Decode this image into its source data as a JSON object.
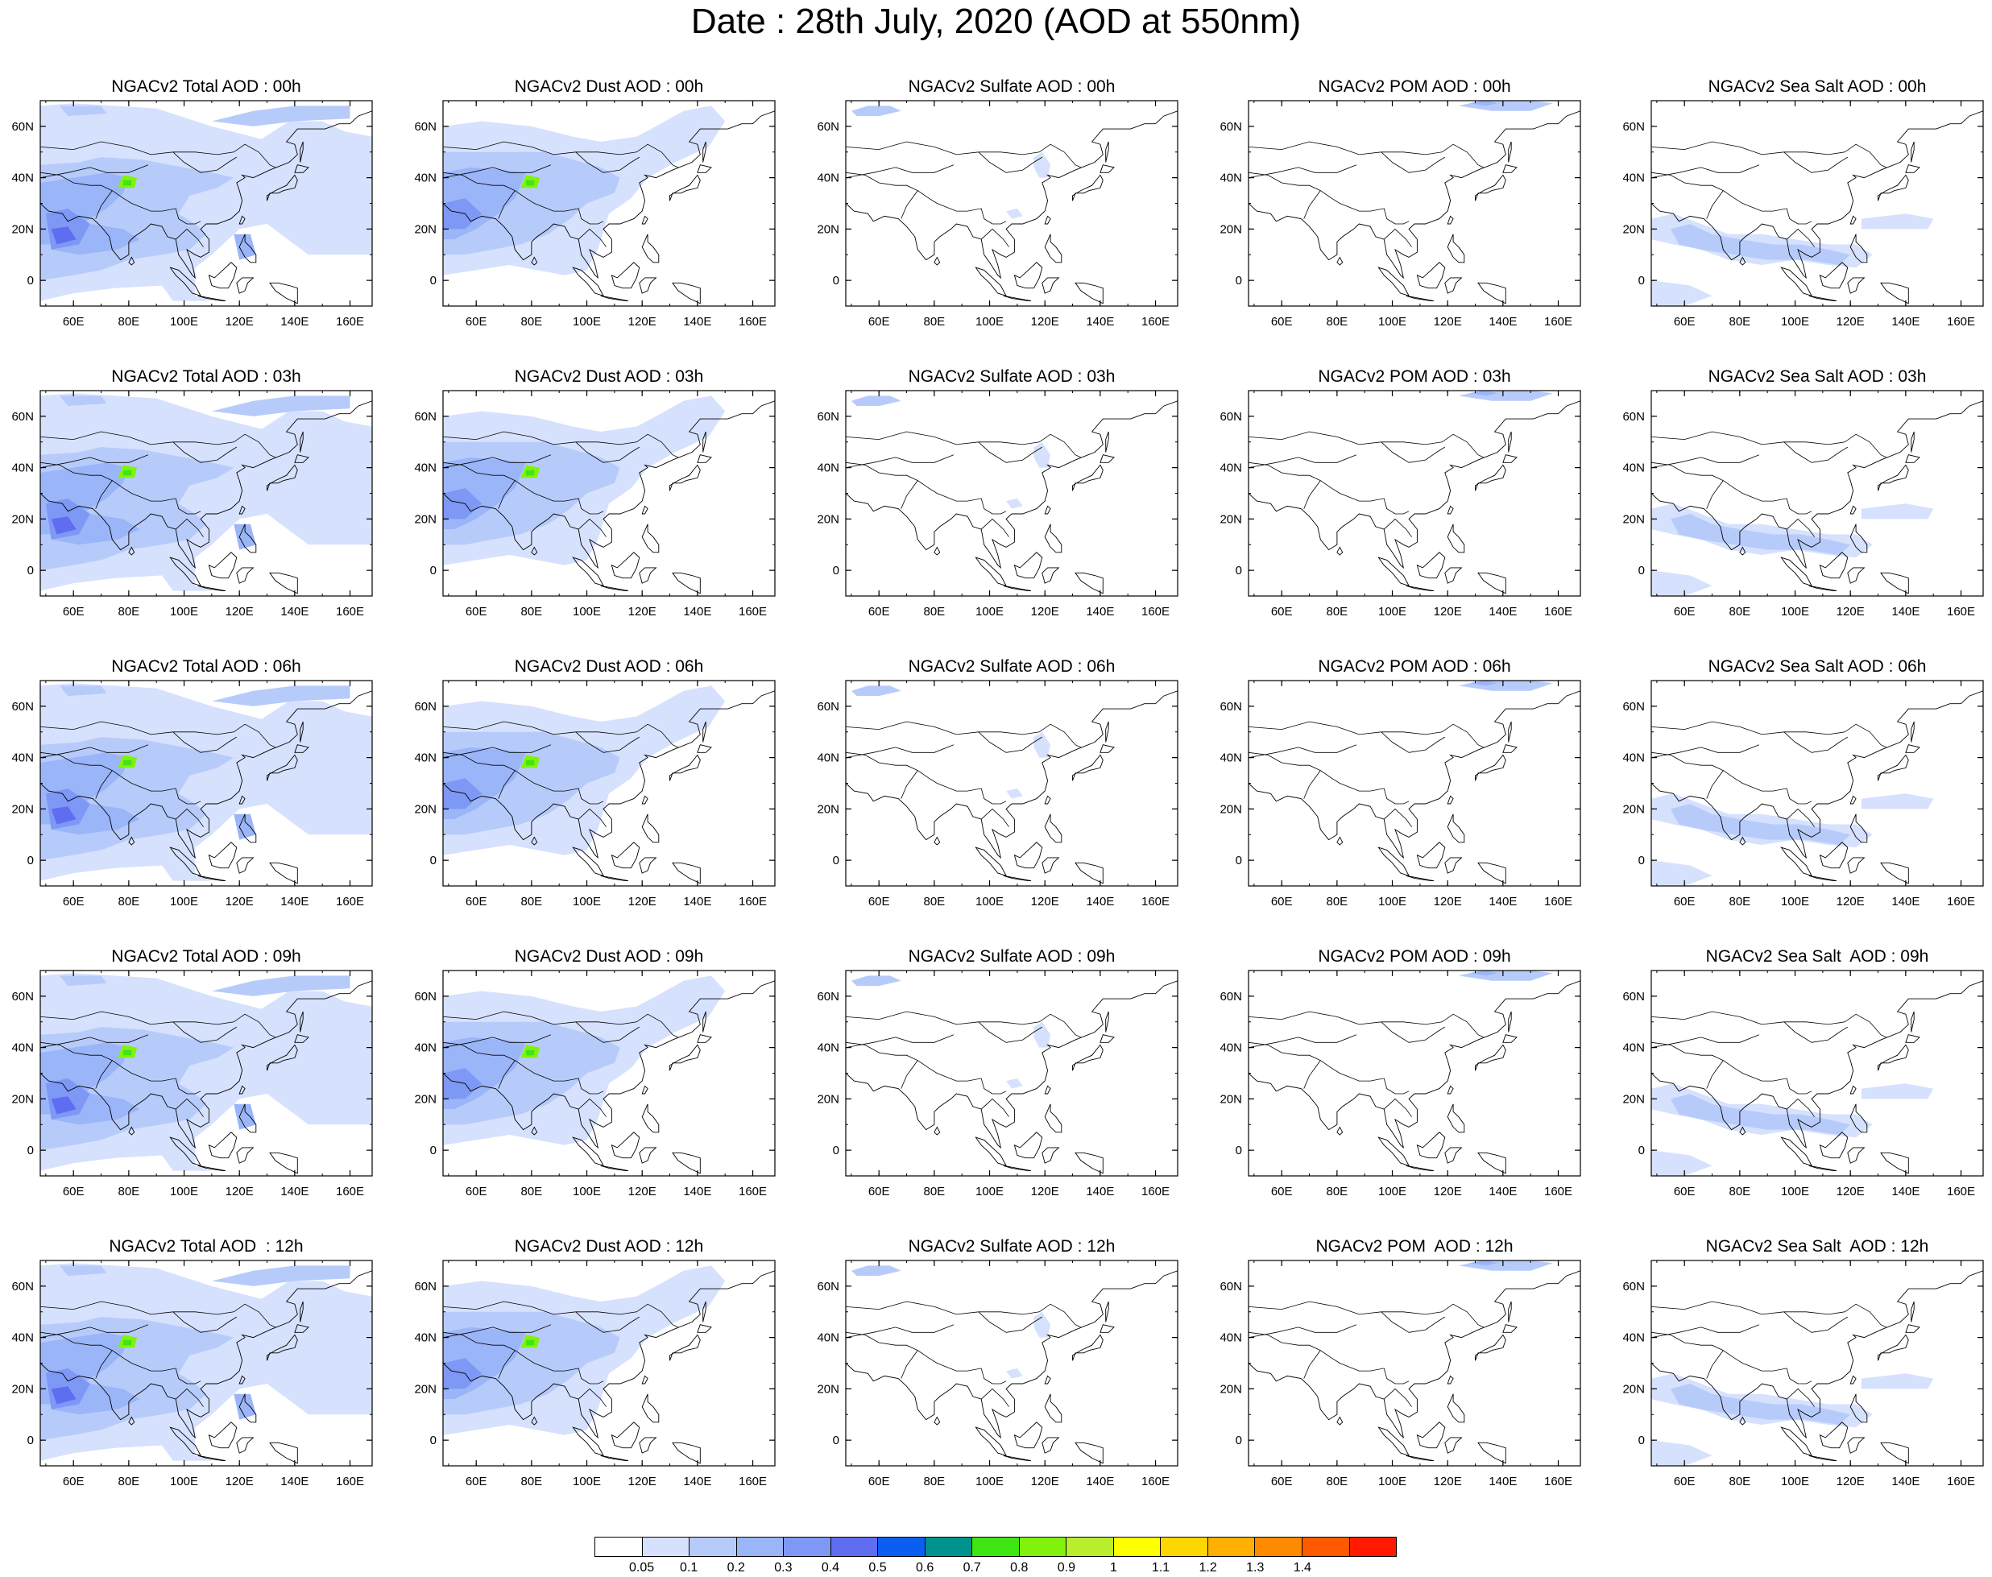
{
  "title": "Date : 28th July, 2020 (AOD at 550nm)",
  "map": {
    "lon_range": [
      48,
      168
    ],
    "lat_range": [
      -10,
      70
    ],
    "lon_ticks": [
      "60E",
      "80E",
      "100E",
      "120E",
      "140E",
      "160E"
    ],
    "lat_ticks": [
      "60N",
      "40N",
      "20N",
      "0"
    ],
    "lon_tick_values": [
      60,
      80,
      100,
      120,
      140,
      160
    ],
    "lat_tick_values": [
      60,
      40,
      20,
      0
    ]
  },
  "panels": [
    {
      "title": "NGACv2 Total AOD : 00h",
      "species": "total",
      "hour": "00h"
    },
    {
      "title": "NGACv2 Dust AOD : 00h",
      "species": "dust",
      "hour": "00h"
    },
    {
      "title": "NGACv2 Sulfate AOD : 00h",
      "species": "sulfate",
      "hour": "00h"
    },
    {
      "title": "NGACv2 POM AOD : 00h",
      "species": "pom",
      "hour": "00h"
    },
    {
      "title": "NGACv2 Sea Salt AOD : 00h",
      "species": "seasalt",
      "hour": "00h"
    },
    {
      "title": "NGACv2 Total AOD : 03h",
      "species": "total",
      "hour": "03h"
    },
    {
      "title": "NGACv2 Dust AOD : 03h",
      "species": "dust",
      "hour": "03h"
    },
    {
      "title": "NGACv2 Sulfate AOD : 03h",
      "species": "sulfate",
      "hour": "03h"
    },
    {
      "title": "NGACv2 POM AOD : 03h",
      "species": "pom",
      "hour": "03h"
    },
    {
      "title": "NGACv2 Sea Salt AOD : 03h",
      "species": "seasalt",
      "hour": "03h"
    },
    {
      "title": "NGACv2 Total AOD : 06h",
      "species": "total",
      "hour": "06h"
    },
    {
      "title": "NGACv2 Dust AOD : 06h",
      "species": "dust",
      "hour": "06h"
    },
    {
      "title": "NGACv2 Sulfate AOD : 06h",
      "species": "sulfate",
      "hour": "06h"
    },
    {
      "title": "NGACv2 POM AOD : 06h",
      "species": "pom",
      "hour": "06h"
    },
    {
      "title": "NGACv2 Sea Salt AOD : 06h",
      "species": "seasalt",
      "hour": "06h"
    },
    {
      "title": "NGACv2 Total AOD : 09h",
      "species": "total",
      "hour": "09h"
    },
    {
      "title": "NGACv2 Dust AOD : 09h",
      "species": "dust",
      "hour": "09h"
    },
    {
      "title": "NGACv2 Sulfate AOD : 09h",
      "species": "sulfate",
      "hour": "09h"
    },
    {
      "title": "NGACv2 POM AOD : 09h",
      "species": "pom",
      "hour": "09h"
    },
    {
      "title": "NGACv2 Sea Salt  AOD : 09h",
      "species": "seasalt",
      "hour": "09h"
    },
    {
      "title": "NGACv2 Total AOD  : 12h",
      "species": "total",
      "hour": "12h"
    },
    {
      "title": "NGACv2 Dust AOD : 12h",
      "species": "dust",
      "hour": "12h"
    },
    {
      "title": "NGACv2 Sulfate AOD : 12h",
      "species": "sulfate",
      "hour": "12h"
    },
    {
      "title": "NGACv2 POM  AOD : 12h",
      "species": "pom",
      "hour": "12h"
    },
    {
      "title": "NGACv2 Sea Salt  AOD : 12h",
      "species": "seasalt",
      "hour": "12h"
    }
  ],
  "colorbar": {
    "colors": [
      "#ffffff",
      "#d6e1fd",
      "#b7cbfb",
      "#9bb5f9",
      "#7e98f6",
      "#5f6df1",
      "#0b5ef2",
      "#00938d",
      "#3fe413",
      "#82f20c",
      "#b8ee2c",
      "#ffff00",
      "#ffd700",
      "#ffb000",
      "#ff8a00",
      "#ff5a00",
      "#ff1a00"
    ],
    "labels": [
      "0.05",
      "0.1",
      "0.2",
      "0.3",
      "0.4",
      "0.5",
      "0.6",
      "0.7",
      "0.8",
      "0.9",
      "1",
      "1.1",
      "1.2",
      "1.3",
      "1.4"
    ]
  }
}
